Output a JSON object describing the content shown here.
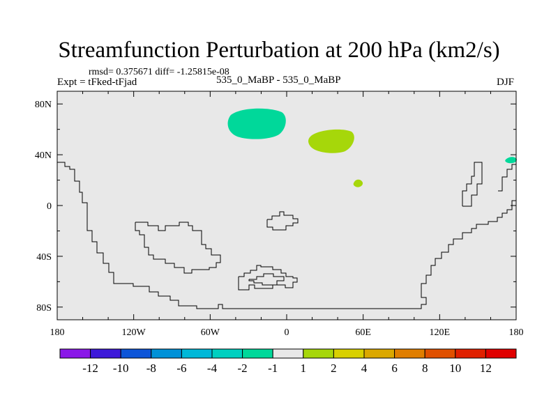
{
  "title": "Streamfunction Perturbation at 200 hPa (km2/s)",
  "stats_line": "rmsd= 0.375671 diff= -1.25815e-08",
  "left_label": "Expt = tFked-tFjad",
  "center_label": "535_0_MaBP - 535_0_MaBP",
  "right_label": "DJF",
  "map": {
    "background_color": "#e8e8e8",
    "lon_ticks": [
      "180",
      "120W",
      "60W",
      "0",
      "60E",
      "120E",
      "180"
    ],
    "lat_ticks": [
      "80N",
      "40N",
      "0",
      "40S",
      "80S"
    ],
    "anomalies": [
      {
        "region": "north of Europe",
        "lon": -20,
        "lat": 63,
        "value_bin": "-2 to -1",
        "color": "#00d89a"
      },
      {
        "region": "northern Asia",
        "lon": 37,
        "lat": 50,
        "value_bin": "1 to 2",
        "color": "#a6d70a"
      },
      {
        "region": "Arabian Sea",
        "lon": 57,
        "lat": 17,
        "value_bin": "1 to 2",
        "color": "#a6d70a"
      },
      {
        "region": "western Pacific",
        "lon": 173,
        "lat": 36,
        "value_bin": "-2 to -1",
        "color": "#00d89a"
      }
    ]
  },
  "colorbar": {
    "labels": [
      "-12",
      "-10",
      "-8",
      "-6",
      "-4",
      "-2",
      "-1",
      "1",
      "2",
      "4",
      "6",
      "8",
      "10",
      "12"
    ],
    "colors": [
      "#8a17e8",
      "#3d19d9",
      "#0d55d8",
      "#0091d8",
      "#00b8d8",
      "#00d0c0",
      "#00d89a",
      "#e8e8e8",
      "#a6d70a",
      "#d8d000",
      "#dba800",
      "#e07e00",
      "#e05000",
      "#e02000",
      "#e00000"
    ]
  }
}
